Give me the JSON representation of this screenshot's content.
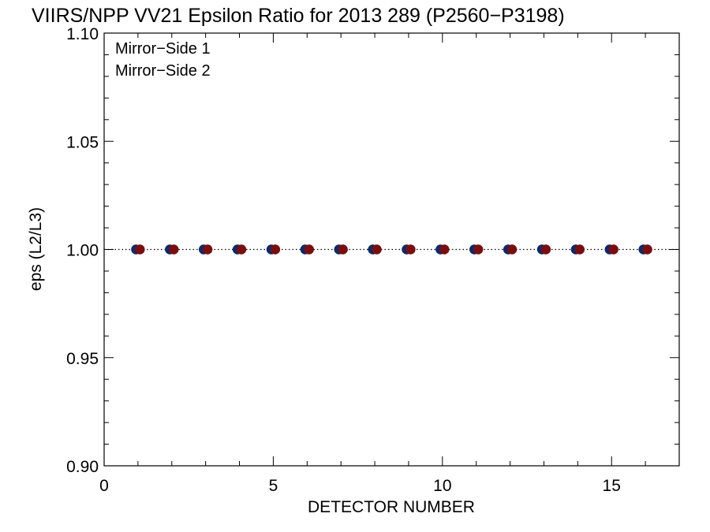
{
  "chart_data": {
    "type": "scatter",
    "title": "VIIRS/NPP VV21 Epsilon Ratio for 2013 289 (P2560−P3198)",
    "xlabel": "DETECTOR NUMBER",
    "ylabel": "eps (L2/L3)",
    "xlim": [
      0,
      17
    ],
    "ylim": [
      0.9,
      1.1
    ],
    "xticks": [
      0,
      5,
      10,
      15
    ],
    "xtick_labels": [
      "0",
      "5",
      "10",
      "15"
    ],
    "yticks": [
      0.9,
      0.95,
      1.0,
      1.05,
      1.1
    ],
    "ytick_labels": [
      "0.90",
      "0.95",
      "1.00",
      "1.05",
      "1.10"
    ],
    "reference_line": {
      "y": 1.0,
      "style": "dotted"
    },
    "legend_placement": "top-left",
    "grid": false,
    "series": [
      {
        "name": "Mirror−Side 1",
        "color": "#0b2a6b",
        "x": [
          1,
          2,
          3,
          4,
          5,
          6,
          7,
          8,
          9,
          10,
          11,
          12,
          13,
          14,
          15,
          16
        ],
        "values": [
          1.0,
          1.0,
          1.0,
          1.0,
          1.0,
          1.0,
          1.0,
          1.0,
          1.0,
          1.0,
          1.0,
          1.0,
          1.0,
          1.0,
          1.0,
          1.0
        ]
      },
      {
        "name": "Mirror−Side 2",
        "color": "#7a0e0e",
        "x": [
          1,
          2,
          3,
          4,
          5,
          6,
          7,
          8,
          9,
          10,
          11,
          12,
          13,
          14,
          15,
          16
        ],
        "values": [
          1.0,
          1.0,
          1.0,
          1.0,
          1.0,
          1.0,
          1.0,
          1.0,
          1.0,
          1.0,
          1.0,
          1.0,
          1.0,
          1.0,
          1.0,
          1.0
        ]
      }
    ]
  }
}
